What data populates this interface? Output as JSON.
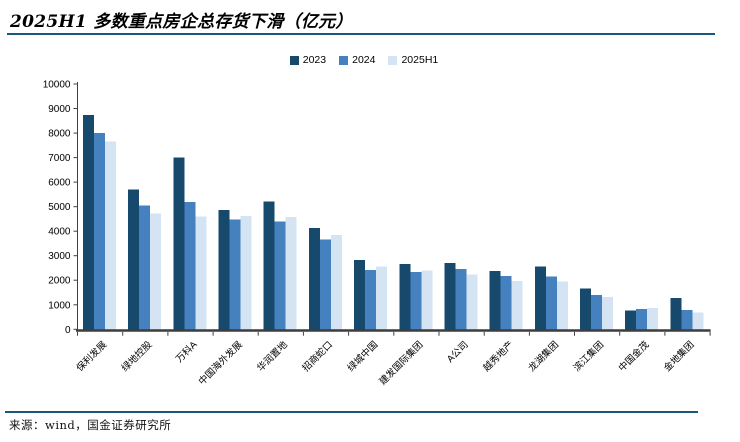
{
  "page": {
    "title": "2025H1 多数重点房企总存货下滑（亿元）",
    "source": "来源：wind，国金证券研究所"
  },
  "colors": {
    "accent_line": "#19587A",
    "axis": "#3d3d3d",
    "tick": "#404040",
    "label_text": "#000000"
  },
  "chart_data": {
    "type": "bar",
    "title": "2025H1 多数重点房企总存货下滑（亿元）",
    "unit": "亿元",
    "categories": [
      "保利发展",
      "绿地控股",
      "万科A",
      "中国海外发展",
      "华润置地",
      "招商蛇口",
      "绿城中国",
      "建发国际集团",
      "A公司",
      "越秀地产",
      "龙湖集团",
      "滨江集团",
      "中国金茂",
      "金地集团"
    ],
    "series": [
      {
        "name": "2023",
        "color": "#17496D",
        "values": [
          8730,
          5690,
          7000,
          4860,
          5220,
          4130,
          2820,
          2660,
          2710,
          2380,
          2550,
          1660,
          760,
          1270
        ]
      },
      {
        "name": "2024",
        "color": "#4581BE",
        "values": [
          8010,
          5050,
          5190,
          4480,
          4390,
          3660,
          2420,
          2340,
          2460,
          2180,
          2150,
          1390,
          820,
          790
        ]
      },
      {
        "name": "2025H1",
        "color": "#D5E4F3",
        "values": [
          7650,
          4720,
          4600,
          4610,
          4570,
          3840,
          2560,
          2390,
          2230,
          1970,
          1940,
          1320,
          860,
          680
        ]
      }
    ],
    "ylim": [
      0,
      10000
    ],
    "ytick_step": 1000,
    "grid": false,
    "legend_position": "top-center"
  }
}
